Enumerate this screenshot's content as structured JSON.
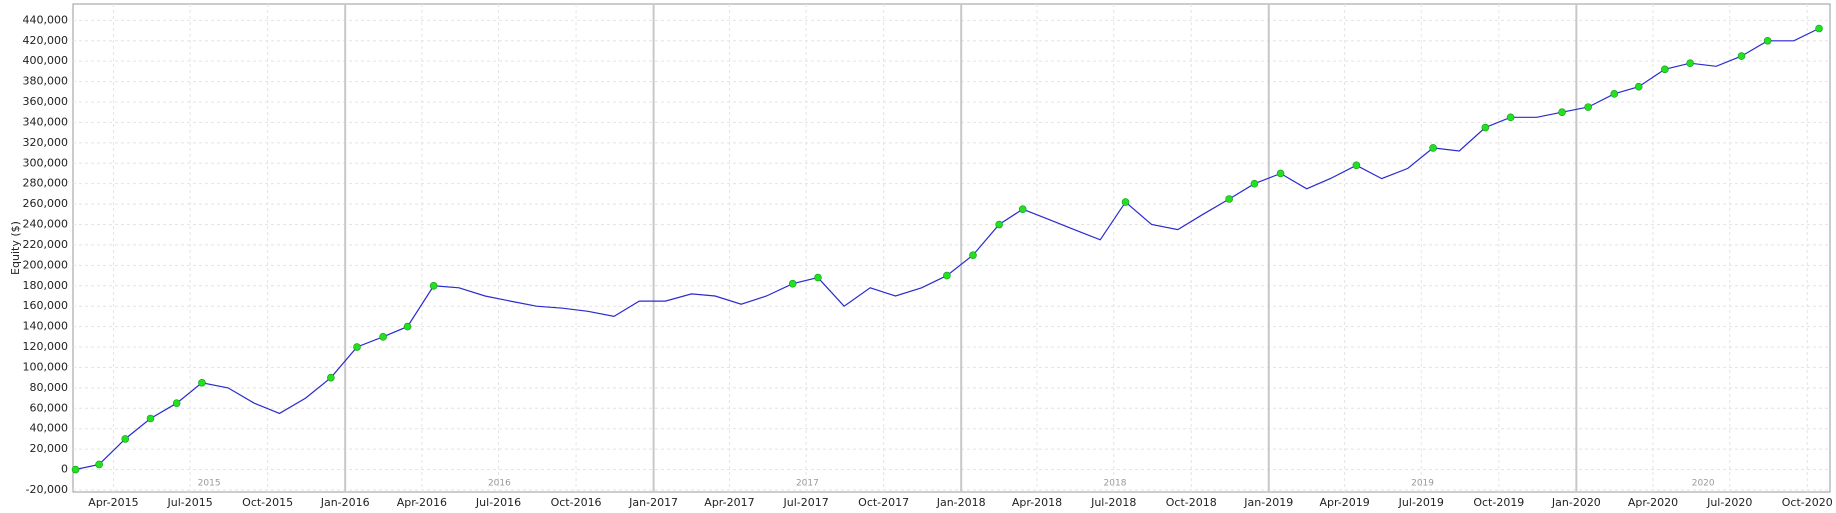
{
  "chart_data": {
    "type": "line",
    "y_label": "Equity ($)",
    "x": [
      "2015-02",
      "2015-03",
      "2015-04",
      "2015-05",
      "2015-06",
      "2015-07",
      "2015-08",
      "2015-09",
      "2015-10",
      "2015-11",
      "2015-12",
      "2016-01",
      "2016-02",
      "2016-03",
      "2016-04",
      "2016-05",
      "2016-06",
      "2016-07",
      "2016-08",
      "2016-09",
      "2016-10",
      "2016-11",
      "2016-12",
      "2017-01",
      "2017-02",
      "2017-03",
      "2017-04",
      "2017-05",
      "2017-06",
      "2017-07",
      "2017-08",
      "2017-09",
      "2017-10",
      "2017-11",
      "2017-12",
      "2018-01",
      "2018-02",
      "2018-03",
      "2018-04",
      "2018-05",
      "2018-06",
      "2018-07",
      "2018-08",
      "2018-09",
      "2018-10",
      "2018-11",
      "2018-12",
      "2019-01",
      "2019-02",
      "2019-03",
      "2019-04",
      "2019-05",
      "2019-06",
      "2019-07",
      "2019-08",
      "2019-09",
      "2019-10",
      "2019-11",
      "2019-12",
      "2020-01",
      "2020-02",
      "2020-03",
      "2020-04",
      "2020-05",
      "2020-06",
      "2020-07",
      "2020-08",
      "2020-09",
      "2020-10"
    ],
    "series": [
      {
        "color": "#2a2ad0",
        "values": [
          0,
          5000,
          30000,
          50000,
          65000,
          85000,
          80000,
          65000,
          55000,
          70000,
          90000,
          120000,
          130000,
          140000,
          180000,
          178000,
          170000,
          165000,
          160000,
          158000,
          155000,
          150000,
          165000,
          165000,
          172000,
          170000,
          162000,
          170000,
          182000,
          188000,
          160000,
          178000,
          170000,
          178000,
          190000,
          210000,
          240000,
          255000,
          245000,
          235000,
          225000,
          262000,
          240000,
          235000,
          250000,
          265000,
          280000,
          290000,
          275000,
          285000,
          298000,
          285000,
          295000,
          315000,
          312000,
          335000,
          345000,
          345000,
          350000,
          355000,
          368000,
          375000,
          392000,
          398000,
          395000,
          405000,
          420000,
          420000,
          432000
        ]
      }
    ],
    "new_high_color": "#22e022",
    "xlim": [
      "2015-02-12",
      "2020-10-28"
    ],
    "xticks": [
      {
        "value": "2015-04-01",
        "label": "Apr-2015"
      },
      {
        "value": "2015-07-01",
        "label": "Jul-2015"
      },
      {
        "value": "2015-10-01",
        "label": "Oct-2015"
      },
      {
        "value": "2016-01-01",
        "label": "Jan-2016"
      },
      {
        "value": "2016-04-01",
        "label": "Apr-2016"
      },
      {
        "value": "2016-07-01",
        "label": "Jul-2016"
      },
      {
        "value": "2016-10-01",
        "label": "Oct-2016"
      },
      {
        "value": "2017-01-01",
        "label": "Jan-2017"
      },
      {
        "value": "2017-04-01",
        "label": "Apr-2017"
      },
      {
        "value": "2017-07-01",
        "label": "Jul-2017"
      },
      {
        "value": "2017-10-01",
        "label": "Oct-2017"
      },
      {
        "value": "2018-01-01",
        "label": "Jan-2018"
      },
      {
        "value": "2018-04-01",
        "label": "Apr-2018"
      },
      {
        "value": "2018-07-01",
        "label": "Jul-2018"
      },
      {
        "value": "2018-10-01",
        "label": "Oct-2018"
      },
      {
        "value": "2019-01-01",
        "label": "Jan-2019"
      },
      {
        "value": "2019-04-01",
        "label": "Apr-2019"
      },
      {
        "value": "2019-07-01",
        "label": "Jul-2019"
      },
      {
        "value": "2019-10-01",
        "label": "Oct-2019"
      },
      {
        "value": "2020-01-01",
        "label": "Jan-2020"
      },
      {
        "value": "2020-04-01",
        "label": "Apr-2020"
      },
      {
        "value": "2020-07-01",
        "label": "Jul-2020"
      },
      {
        "value": "2020-10-01",
        "label": "Oct-2020"
      }
    ],
    "years": [
      2015,
      2016,
      2017,
      2018,
      2019,
      2020
    ],
    "ylim": [
      -22000,
      456000
    ],
    "yticks": [
      {
        "value": -20000,
        "label": "-20,000"
      },
      0,
      {
        "value": 20000,
        "label": "20,000"
      },
      {
        "value": 40000,
        "label": "40,000"
      },
      {
        "value": 60000,
        "label": "60,000"
      },
      {
        "value": 80000,
        "label": "80,000"
      },
      {
        "value": 100000,
        "label": "100,000"
      },
      {
        "value": 120000,
        "label": "120,000"
      },
      {
        "value": 140000,
        "label": "140,000"
      },
      {
        "value": 160000,
        "label": "160,000"
      },
      {
        "value": 180000,
        "label": "180,000"
      },
      {
        "value": 200000,
        "label": "200,000"
      },
      {
        "value": 220000,
        "label": "220,000"
      },
      {
        "value": 240000,
        "label": "240,000"
      },
      {
        "value": 260000,
        "label": "260,000"
      },
      {
        "value": 280000,
        "label": "280,000"
      },
      {
        "value": 300000,
        "label": "300,000"
      },
      {
        "value": 320000,
        "label": "320,000"
      },
      {
        "value": 340000,
        "label": "340,000"
      },
      {
        "value": 360000,
        "label": "360,000"
      },
      {
        "value": 380000,
        "label": "380,000"
      },
      {
        "value": 400000,
        "label": "400,000"
      },
      {
        "value": 420000,
        "label": "420,000"
      },
      {
        "value": 440000,
        "label": "440,000"
      }
    ],
    "grid": true
  }
}
